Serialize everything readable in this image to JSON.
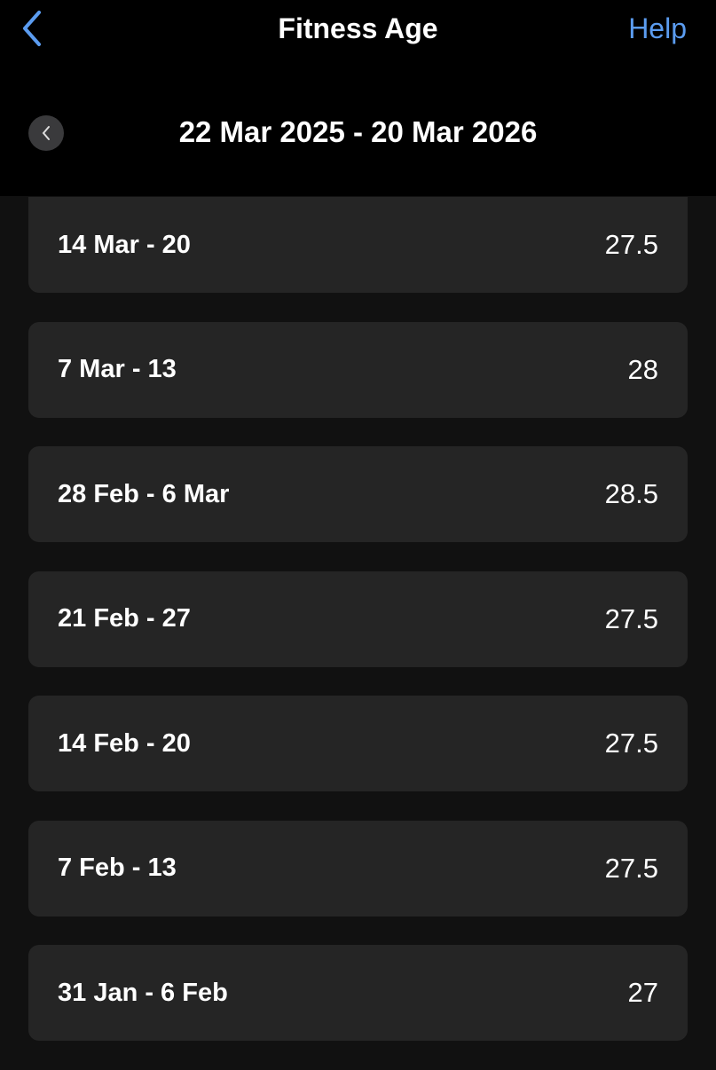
{
  "header": {
    "title": "Fitness Age",
    "help_label": "Help",
    "back_icon": "chevron-left-icon"
  },
  "range": {
    "label": "22 Mar 2025 - 20 Mar 2026",
    "prev_icon": "chevron-left-icon"
  },
  "accent": "#5b9cf0",
  "weeks": [
    {
      "label": "14 Mar - 20",
      "value": "27.5"
    },
    {
      "label": "7 Mar - 13",
      "value": "28"
    },
    {
      "label": "28 Feb - 6 Mar",
      "value": "28.5"
    },
    {
      "label": "21 Feb - 27",
      "value": "27.5"
    },
    {
      "label": "14 Feb - 20",
      "value": "27.5"
    },
    {
      "label": "7 Feb - 13",
      "value": "27.5"
    },
    {
      "label": "31 Jan - 6 Feb",
      "value": "27"
    }
  ]
}
